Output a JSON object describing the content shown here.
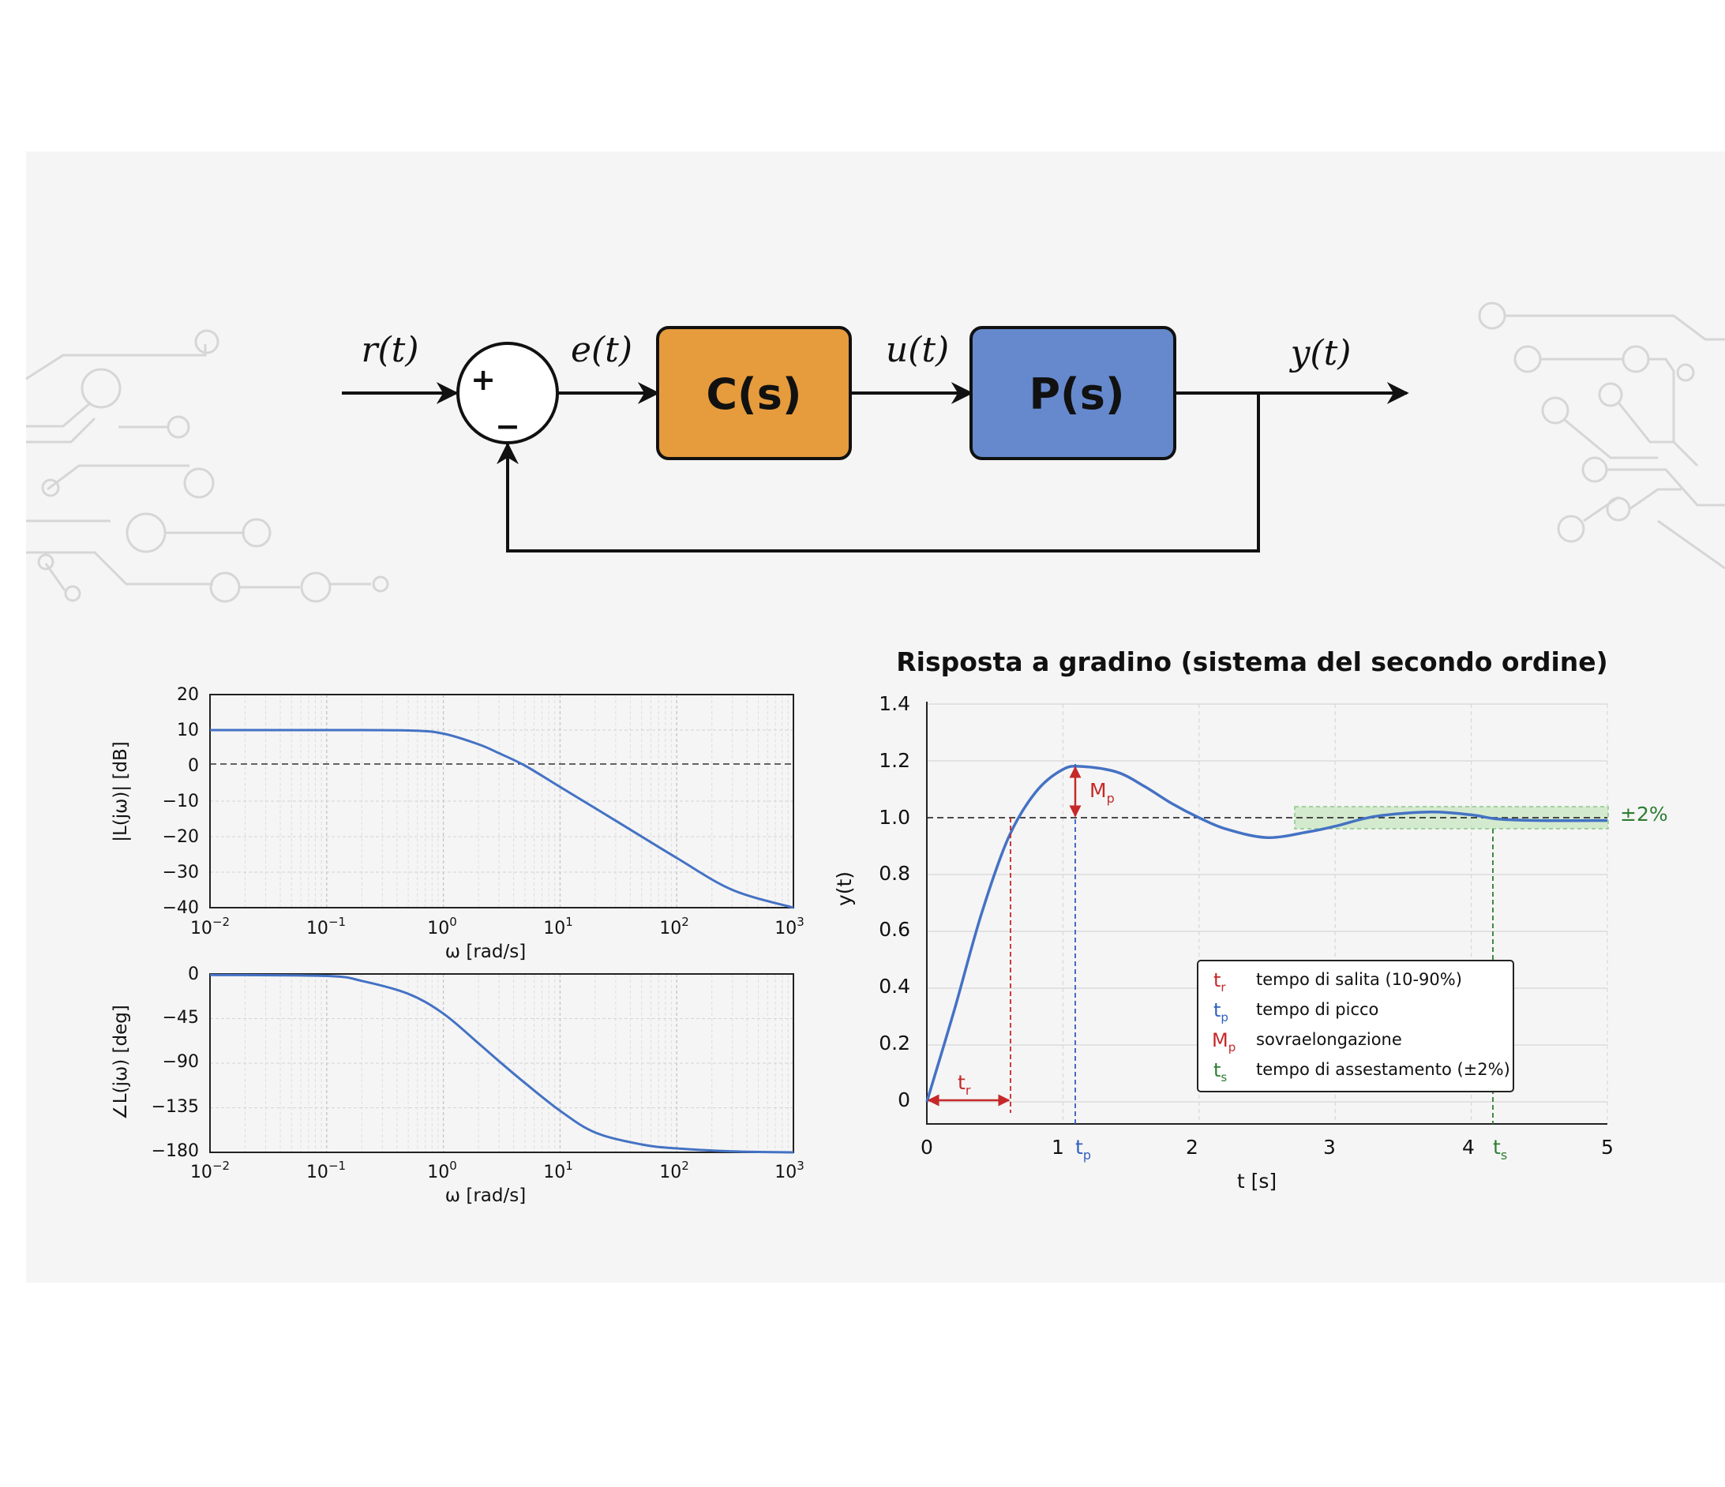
{
  "block_diagram": {
    "reference_signal": "r(t)",
    "error_signal": "e(t)",
    "control_signal": "u(t)",
    "output_signal": "y(t)",
    "controller_label": "C(s)",
    "plant_label": "P(s)",
    "sum_plus": "+",
    "sum_minus": "−",
    "colors": {
      "controller": "#e69b3c",
      "plant": "#6589cc",
      "background": "#f5f5f5",
      "decor": "#d9d9d9"
    }
  },
  "bode": {
    "magnitude": {
      "ylabel": "|L(jω)|  [dB]",
      "yticks": [
        "20",
        "10",
        "0",
        "−10",
        "−20",
        "−30",
        "−40"
      ]
    },
    "phase": {
      "ylabel": "∠L(jω)  [deg]",
      "yticks": [
        "0",
        "−45",
        "−90",
        "−135",
        "−180"
      ]
    },
    "xlabel": "ω  [rad/s]",
    "xticks": [
      {
        "base": "10",
        "exp": "−2"
      },
      {
        "base": "10",
        "exp": "−1"
      },
      {
        "base": "10",
        "exp": "0"
      },
      {
        "base": "10",
        "exp": "1"
      },
      {
        "base": "10",
        "exp": "2"
      },
      {
        "base": "10",
        "exp": "3"
      }
    ]
  },
  "step": {
    "title": "Risposta a gradino (sistema del secondo ordine)",
    "xlabel": "t [s]",
    "ylabel": "y(t)",
    "xticks": [
      "0",
      "1",
      "2",
      "3",
      "4",
      "5"
    ],
    "yticks": [
      "0",
      "0.2",
      "0.4",
      "0.6",
      "0.8",
      "1.0",
      "1.2",
      "1.4"
    ],
    "band_label": "±2%",
    "markers": {
      "tr": {
        "base": "t",
        "sub": "r"
      },
      "tp": {
        "base": "t",
        "sub": "p"
      },
      "mp": {
        "base": "M",
        "sub": "p"
      },
      "ts": {
        "base": "t",
        "sub": "s"
      }
    },
    "legend": [
      {
        "sym": "t",
        "sub": "r",
        "text": "tempo di salita (10-90%)",
        "color": "#c62828"
      },
      {
        "sym": "t",
        "sub": "p",
        "text": "tempo di picco",
        "color": "#2f5fbf"
      },
      {
        "sym": "M",
        "sub": "p",
        "text": "sovraelongazione",
        "color": "#c62828"
      },
      {
        "sym": "t",
        "sub": "s",
        "text": "tempo di assestamento (±2%)",
        "color": "#2e7d32"
      }
    ]
  },
  "chart_data": [
    {
      "type": "line",
      "title": "",
      "xlabel": "ω  [rad/s]",
      "ylabel": "|L(jω)|  [dB]",
      "x_scale": "log",
      "xlim": [
        0.01,
        1000
      ],
      "ylim": [
        -40,
        20
      ],
      "grid": true,
      "reference_line": 0,
      "series": [
        {
          "x": [
            0.01,
            0.1,
            0.5,
            1,
            2,
            3,
            5,
            10,
            30,
            100,
            300,
            1000
          ],
          "values": [
            10,
            10,
            9.9,
            9.0,
            6.0,
            3.5,
            0,
            -6,
            -15.5,
            -26,
            -35,
            -40
          ]
        }
      ]
    },
    {
      "type": "line",
      "title": "",
      "xlabel": "ω  [rad/s]",
      "ylabel": "∠L(jω)  [deg]",
      "x_scale": "log",
      "xlim": [
        0.01,
        1000
      ],
      "ylim": [
        -180,
        0
      ],
      "grid": true,
      "series": [
        {
          "x": [
            0.01,
            0.1,
            0.2,
            0.5,
            1,
            2,
            3,
            5,
            10,
            20,
            50,
            100,
            300,
            1000
          ],
          "values": [
            -1,
            -2,
            -7,
            -20,
            -40,
            -70,
            -88,
            -110,
            -138,
            -160,
            -172,
            -176,
            -179,
            -180
          ]
        }
      ]
    },
    {
      "type": "line",
      "title": "Risposta a gradino (sistema del secondo ordine)",
      "xlabel": "t [s]",
      "ylabel": "y(t)",
      "xlim": [
        0,
        5
      ],
      "ylim": [
        0,
        1.4
      ],
      "grid": true,
      "reference_line": 1.0,
      "band": [
        0.98,
        1.02
      ],
      "series": [
        {
          "x": [
            0,
            0.2,
            0.4,
            0.6,
            0.8,
            1.0,
            1.15,
            1.4,
            1.6,
            1.8,
            2.0,
            2.2,
            2.5,
            2.8,
            3.0,
            3.3,
            3.7,
            4.0,
            4.2,
            4.5,
            5.0
          ],
          "values": [
            0,
            0.32,
            0.66,
            0.93,
            1.09,
            1.17,
            1.18,
            1.16,
            1.11,
            1.05,
            1.0,
            0.96,
            0.93,
            0.95,
            0.97,
            1.005,
            1.02,
            1.01,
            0.995,
            0.99,
            0.99
          ]
        }
      ],
      "annotations": {
        "tr": 0.62,
        "tp": 1.1,
        "Mp": 1.18,
        "ts": 4.2
      },
      "legend_position": "center-right"
    }
  ]
}
